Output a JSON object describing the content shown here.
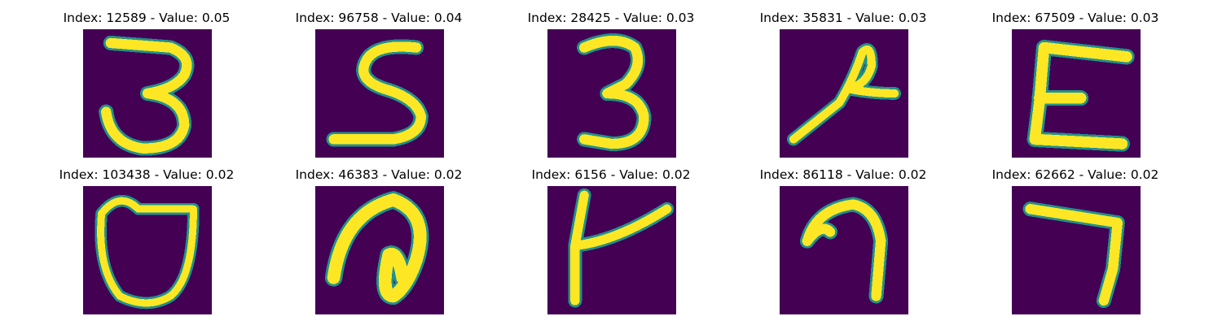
{
  "figure": {
    "panels": [
      {
        "title": "Index: 12589 - Value: 0.05",
        "glyph": "3"
      },
      {
        "title": "Index: 96758 - Value: 0.04",
        "glyph": "S"
      },
      {
        "title": "Index: 28425 - Value: 0.03",
        "glyph": "3"
      },
      {
        "title": "Index: 35831 - Value: 0.03",
        "glyph": "loop-stroke"
      },
      {
        "title": "Index: 67509 - Value: 0.03",
        "glyph": "E"
      },
      {
        "title": "Index: 103438 - Value: 0.02",
        "glyph": "O"
      },
      {
        "title": "Index: 46383 - Value: 0.02",
        "glyph": "curved-stroke"
      },
      {
        "title": "Index: 6156 - Value: 0.02",
        "glyph": "cross-stroke"
      },
      {
        "title": "Index: 86118 - Value: 0.02",
        "glyph": "hook-stroke"
      },
      {
        "title": "Index: 62662 - Value: 0.02",
        "glyph": "7"
      }
    ],
    "colors": {
      "background": "#440154",
      "stroke": "#fde725",
      "edge": "#21918c"
    }
  }
}
